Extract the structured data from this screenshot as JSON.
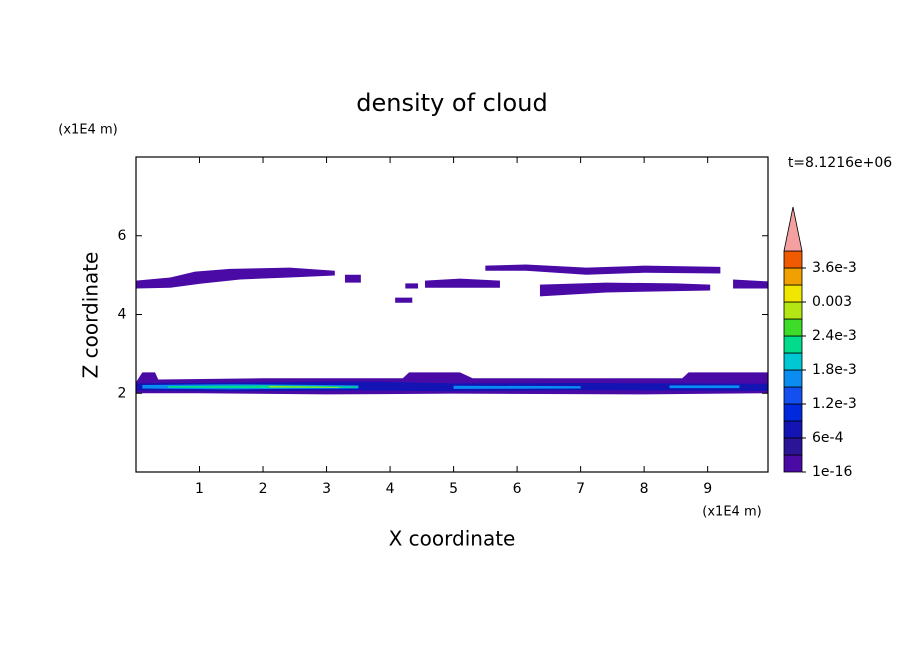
{
  "chart_data": {
    "type": "contour",
    "title": "density of cloud",
    "xlabel": "X coordinate",
    "ylabel": "Z coordinate",
    "x_unit": "(x1E4 m)",
    "y_unit": "(x1E4 m)",
    "time_label": "t=8.1216e+06",
    "xlim": [
      0,
      9.95
    ],
    "ylim": [
      0,
      8
    ],
    "xticks": [
      1,
      2,
      3,
      4,
      5,
      6,
      7,
      8,
      9
    ],
    "yticks": [
      2,
      4,
      6
    ],
    "colorbar": {
      "levels": [
        1e-16,
        0.0003,
        0.0006,
        0.0009,
        0.0012,
        0.0015,
        0.0018,
        0.0021,
        0.0024,
        0.0027,
        0.003,
        0.0033,
        0.0036,
        0.0039
      ],
      "colors": [
        "#4a0aa6",
        "#2c1496",
        "#1414b4",
        "#0028dc",
        "#1450f0",
        "#0a8cf0",
        "#00c8d2",
        "#00dc8c",
        "#3cdc28",
        "#b4e614",
        "#f0e600",
        "#f0a000",
        "#f05a00",
        "#e61414"
      ],
      "extend_color": "#f4a0a0",
      "ticks": [
        1e-16,
        {
          "value": 0.0006,
          "label": "6e-4"
        },
        {
          "value": 0.0012,
          "label": "1.2e-3"
        },
        {
          "value": 0.0018,
          "label": "1.8e-3"
        },
        {
          "value": 0.0024,
          "label": "2.4e-3"
        },
        0.003,
        {
          "value": 0.0036,
          "label": "3.6e-3"
        }
      ]
    },
    "contours": [
      {
        "level": 1e-16,
        "x": [
          0,
          0.54,
          0.93,
          1.48,
          2.42,
          3.13,
          3.13,
          2.42,
          1.64,
          1.01,
          0.54,
          0
        ],
        "z": [
          4.86,
          4.94,
          5.09,
          5.16,
          5.19,
          5.11,
          4.99,
          4.94,
          4.89,
          4.78,
          4.68,
          4.66
        ]
      },
      {
        "level": 1e-16,
        "x": [
          3.29,
          3.54,
          3.54,
          3.29
        ],
        "z": [
          5.01,
          5.01,
          4.81,
          4.81
        ]
      },
      {
        "level": 1e-16,
        "x": [
          4.24,
          4.44,
          4.44,
          4.24
        ],
        "z": [
          4.79,
          4.79,
          4.66,
          4.66
        ]
      },
      {
        "level": 1e-16,
        "x": [
          4.08,
          4.35,
          4.35,
          4.08
        ],
        "z": [
          4.43,
          4.43,
          4.3,
          4.3
        ]
      },
      {
        "level": 1e-16,
        "x": [
          4.55,
          5.1,
          5.73,
          5.73,
          4.55
        ],
        "z": [
          4.86,
          4.91,
          4.86,
          4.68,
          4.68
        ]
      },
      {
        "level": 1e-16,
        "x": [
          5.5,
          6.14,
          7.09,
          8.0,
          9.2,
          9.2,
          8.0,
          7.09,
          6.14,
          5.5
        ],
        "z": [
          5.24,
          5.27,
          5.19,
          5.24,
          5.21,
          5.04,
          5.06,
          5.01,
          5.11,
          5.11
        ]
      },
      {
        "level": 1e-16,
        "x": [
          6.36,
          7.4,
          8.5,
          9.04,
          9.04,
          7.4,
          6.36
        ],
        "z": [
          4.76,
          4.81,
          4.79,
          4.76,
          4.61,
          4.56,
          4.46
        ]
      },
      {
        "level": 1e-16,
        "x": [
          9.4,
          9.95,
          9.95,
          9.4
        ],
        "z": [
          4.89,
          4.84,
          4.66,
          4.66
        ]
      },
      {
        "level": 1e-16,
        "x": [
          0,
          0.1,
          0.3,
          0.35,
          2.0,
          4.2,
          4.3,
          5.1,
          5.3,
          8.6,
          8.7,
          9.95,
          9.95,
          8,
          5,
          3,
          1,
          0
        ],
        "z": [
          2.28,
          2.53,
          2.53,
          2.35,
          2.38,
          2.38,
          2.53,
          2.53,
          2.38,
          2.38,
          2.53,
          2.53,
          2.0,
          1.97,
          1.99,
          1.97,
          2.0,
          2.0
        ]
      },
      {
        "level": 0.0006,
        "x": [
          0,
          1.5,
          3.5,
          5,
          7,
          9.95,
          9.95,
          7,
          5,
          3.5,
          1.5,
          0
        ],
        "z": [
          2.25,
          2.27,
          2.3,
          2.25,
          2.26,
          2.24,
          2.06,
          2.08,
          2.05,
          2.07,
          2.05,
          2.07
        ]
      },
      {
        "level": 0.0015,
        "x": [
          0.1,
          1.5,
          3.5,
          3.5,
          1.5,
          0.1
        ],
        "z": [
          2.21,
          2.23,
          2.2,
          2.12,
          2.1,
          2.12
        ]
      },
      {
        "level": 0.0015,
        "x": [
          5,
          7,
          7,
          5
        ],
        "z": [
          2.19,
          2.18,
          2.12,
          2.11
        ]
      },
      {
        "level": 0.0015,
        "x": [
          8.4,
          9.5,
          9.5,
          8.4
        ],
        "z": [
          2.2,
          2.2,
          2.13,
          2.13
        ]
      },
      {
        "level": 0.0021,
        "x": [
          0.5,
          2,
          3.5,
          3.5,
          2,
          0.5
        ],
        "z": [
          2.18,
          2.2,
          2.17,
          2.14,
          2.13,
          2.14
        ]
      },
      {
        "level": 0.0027,
        "x": [
          2.1,
          3.2,
          3.2,
          2.1
        ],
        "z": [
          2.18,
          2.16,
          2.14,
          2.15
        ]
      }
    ]
  }
}
